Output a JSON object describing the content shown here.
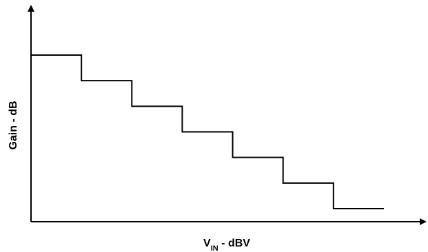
{
  "chart_data": {
    "type": "line",
    "title": "",
    "xlabel": "",
    "ylabel": "Gain - dB",
    "x_axis_label": {
      "main": "V",
      "subscript": "IN",
      "suffix": " - dBV"
    },
    "series": [
      {
        "points": [
          [
            0,
            6
          ],
          [
            1,
            6
          ],
          [
            1,
            5
          ],
          [
            2,
            5
          ],
          [
            2,
            4
          ],
          [
            3,
            4
          ],
          [
            3,
            3
          ],
          [
            4,
            3
          ],
          [
            4,
            2
          ],
          [
            5,
            2
          ],
          [
            5,
            1
          ],
          [
            6,
            1
          ],
          [
            6,
            0
          ],
          [
            7,
            0
          ]
        ]
      }
    ],
    "xlim": [
      0,
      7
    ],
    "ylim": [
      0,
      6
    ],
    "grid": false,
    "legend": "none",
    "line_color": "#000000"
  }
}
